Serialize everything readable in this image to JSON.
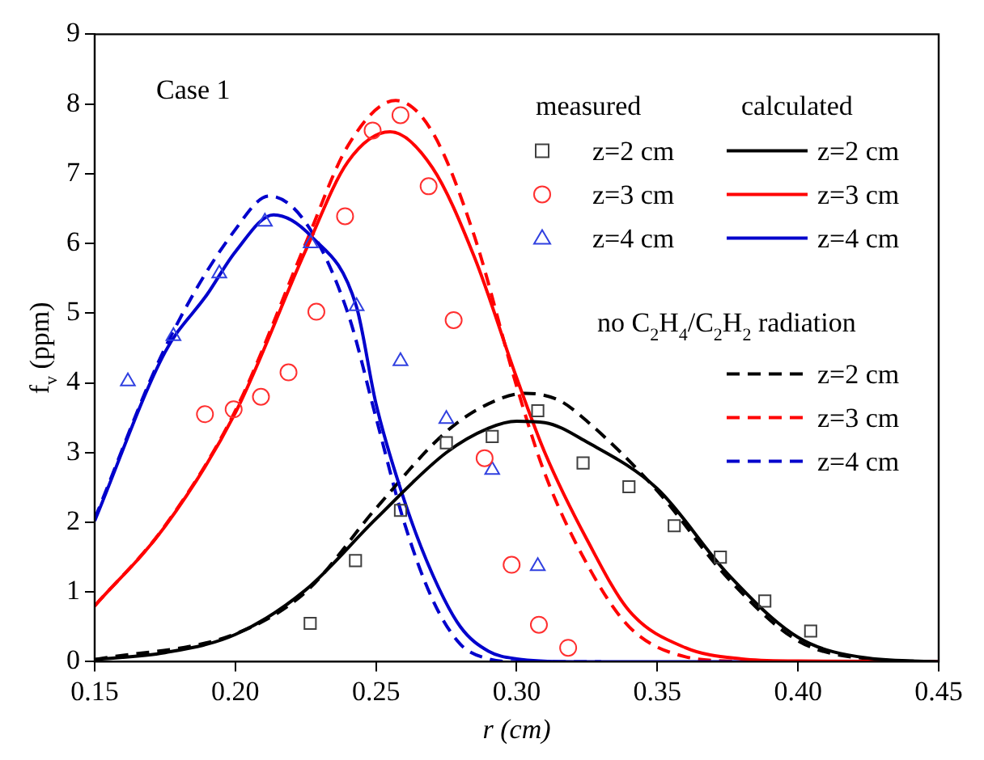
{
  "chart_data": {
    "type": "line",
    "xlabel": "r (cm)",
    "ylabel": "f$_{v}$ (ppm)",
    "annotations": [
      "Case 1",
      "measured",
      "calculated",
      "no C$_{2}$H$_{4}$/C$_{2}$H$_{2}$ radiation"
    ],
    "xlim": [
      0.15,
      0.45
    ],
    "xticks": [
      0.15,
      {
        "value": 0.2,
        "label": "0.20"
      },
      0.25,
      {
        "value": 0.3,
        "label": "0.30"
      },
      0.35,
      {
        "value": 0.4,
        "label": "0.40"
      },
      0.45
    ],
    "ylim": [
      0,
      9
    ],
    "yticks": [
      0,
      1,
      2,
      3,
      4,
      5,
      6,
      7,
      8,
      9
    ],
    "grid": false,
    "legend": "top right",
    "series": [
      {
        "name": "z=2 cm",
        "type": "scatter",
        "marker": "square",
        "color": "#404040",
        "x": [
          0.2266,
          0.2427,
          0.2587,
          0.275,
          0.2913,
          0.3075,
          0.3236,
          0.3399,
          0.356,
          0.3724,
          0.3882,
          0.4045
        ],
        "values": [
          0.55,
          1.45,
          2.17,
          3.14,
          3.23,
          3.6,
          2.85,
          2.51,
          1.95,
          1.5,
          0.87,
          0.44
        ]
      },
      {
        "name": "z=3 cm",
        "type": "scatter",
        "marker": "circle",
        "color": "#ff3030",
        "x": [
          0.1892,
          0.1994,
          0.2091,
          0.2189,
          0.2288,
          0.239,
          0.2488,
          0.2587,
          0.2687,
          0.2776,
          0.2886,
          0.2982,
          0.3079,
          0.3183
        ],
        "values": [
          3.55,
          3.62,
          3.8,
          4.15,
          5.02,
          6.39,
          7.62,
          7.84,
          6.82,
          4.9,
          2.92,
          1.39,
          0.53,
          0.2
        ]
      },
      {
        "name": "z=4 cm",
        "type": "scatter",
        "marker": "triangle",
        "color": "#3040e0",
        "x": [
          0.1618,
          0.178,
          0.1943,
          0.2105,
          0.2268,
          0.2431,
          0.2587,
          0.275,
          0.2913,
          0.3075
        ],
        "values": [
          4.02,
          4.67,
          5.57,
          6.31,
          6.0,
          5.1,
          4.31,
          3.48,
          2.75,
          1.37
        ]
      },
      {
        "name": "z=2 cm",
        "line_style": "solid",
        "color": "#000000",
        "x": [
          0.15,
          0.175,
          0.2,
          0.225,
          0.25,
          0.275,
          0.29,
          0.3,
          0.31,
          0.325,
          0.35,
          0.375,
          0.4,
          0.425,
          0.45
        ],
        "values": [
          0.03,
          0.13,
          0.39,
          1.03,
          2.05,
          3.0,
          3.35,
          3.45,
          3.43,
          3.15,
          2.48,
          1.26,
          0.35,
          0.05,
          0
        ]
      },
      {
        "name": "z=3 cm",
        "line_style": "solid",
        "color": "#ff0000",
        "x": [
          0.15,
          0.175,
          0.2,
          0.225,
          0.24,
          0.255,
          0.27,
          0.285,
          0.3,
          0.31,
          0.325,
          0.34,
          0.36,
          0.38,
          0.4,
          0.45
        ],
        "values": [
          0.8,
          1.94,
          3.57,
          5.9,
          7.17,
          7.6,
          7.09,
          5.8,
          4.07,
          3.0,
          1.75,
          0.73,
          0.2,
          0.04,
          0.01,
          0
        ]
      },
      {
        "name": "z=4 cm",
        "line_style": "solid",
        "color": "#0000cc",
        "x": [
          0.15,
          0.175,
          0.19,
          0.2,
          0.2136,
          0.227,
          0.243,
          0.25,
          0.26,
          0.27,
          0.28,
          0.29,
          0.3,
          0.32,
          0.45
        ],
        "values": [
          2.02,
          4.44,
          5.27,
          5.88,
          6.41,
          6.1,
          5.1,
          3.7,
          2.32,
          1.26,
          0.5,
          0.15,
          0.04,
          0,
          0
        ]
      },
      {
        "name": "z=2 cm",
        "line_style": "dashed",
        "color": "#000000",
        "x": [
          0.15,
          0.2,
          0.225,
          0.25,
          0.275,
          0.29,
          0.303,
          0.315,
          0.325,
          0.35,
          0.375,
          0.4,
          0.425,
          0.45
        ],
        "values": [
          0.03,
          0.4,
          1.0,
          2.2,
          3.3,
          3.7,
          3.85,
          3.75,
          3.45,
          2.45,
          1.2,
          0.3,
          0.04,
          0
        ]
      },
      {
        "name": "z=3 cm",
        "line_style": "dashed",
        "color": "#ff0000",
        "x": [
          0.15,
          0.175,
          0.2,
          0.225,
          0.24,
          0.257,
          0.27,
          0.285,
          0.3,
          0.31,
          0.325,
          0.34,
          0.36,
          0.38
        ],
        "values": [
          0.8,
          1.95,
          3.6,
          6.0,
          7.4,
          8.05,
          7.6,
          6.1,
          3.95,
          2.7,
          1.4,
          0.5,
          0.07,
          0
        ]
      },
      {
        "name": "z=4 cm",
        "line_style": "dashed",
        "color": "#0000cc",
        "x": [
          0.15,
          0.175,
          0.2,
          0.212,
          0.225,
          0.24,
          0.25,
          0.26,
          0.27,
          0.28,
          0.29,
          0.3,
          0.33
        ],
        "values": [
          2.05,
          4.5,
          6.2,
          6.68,
          6.3,
          5.0,
          3.5,
          2.0,
          0.9,
          0.25,
          0.04,
          0,
          0
        ]
      }
    ]
  }
}
